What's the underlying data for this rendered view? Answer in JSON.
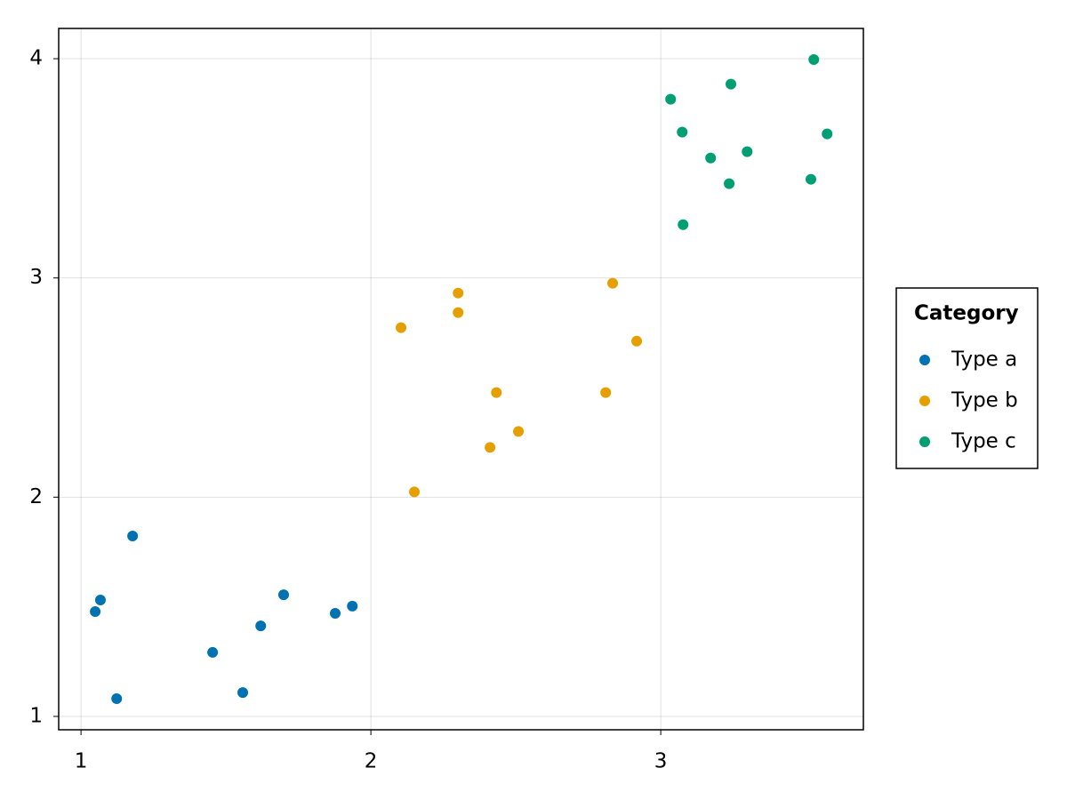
{
  "chart_data": {
    "type": "scatter",
    "legend_title": "Category",
    "legend": "right",
    "grid": true,
    "xlim": [
      0.923,
      3.699
    ],
    "ylim": [
      0.939,
      4.138
    ],
    "xticks": [
      1,
      2,
      3
    ],
    "yticks": [
      1,
      2,
      3,
      4
    ],
    "series": [
      {
        "name": "Type a",
        "color": "#0072b2",
        "x": [
          1.049,
          1.067,
          1.178,
          1.123,
          1.454,
          1.558,
          1.62,
          1.699,
          1.877,
          1.936
        ],
        "values": [
          1.478,
          1.531,
          1.823,
          1.081,
          1.292,
          1.109,
          1.413,
          1.555,
          1.47,
          1.503
        ]
      },
      {
        "name": "Type b",
        "color": "#e69f00",
        "x": [
          2.104,
          2.15,
          2.301,
          2.301,
          2.433,
          2.411,
          2.509,
          2.81,
          2.834,
          2.917
        ],
        "values": [
          2.773,
          2.024,
          2.931,
          2.842,
          2.477,
          2.227,
          2.3,
          2.477,
          2.976,
          2.712
        ]
      },
      {
        "name": "Type c",
        "color": "#009e73",
        "x": [
          3.034,
          3.074,
          3.077,
          3.172,
          3.242,
          3.236,
          3.298,
          3.518,
          3.528,
          3.574
        ],
        "values": [
          3.815,
          3.665,
          3.243,
          3.547,
          3.884,
          3.43,
          3.576,
          3.45,
          3.996,
          3.657
        ]
      }
    ]
  }
}
